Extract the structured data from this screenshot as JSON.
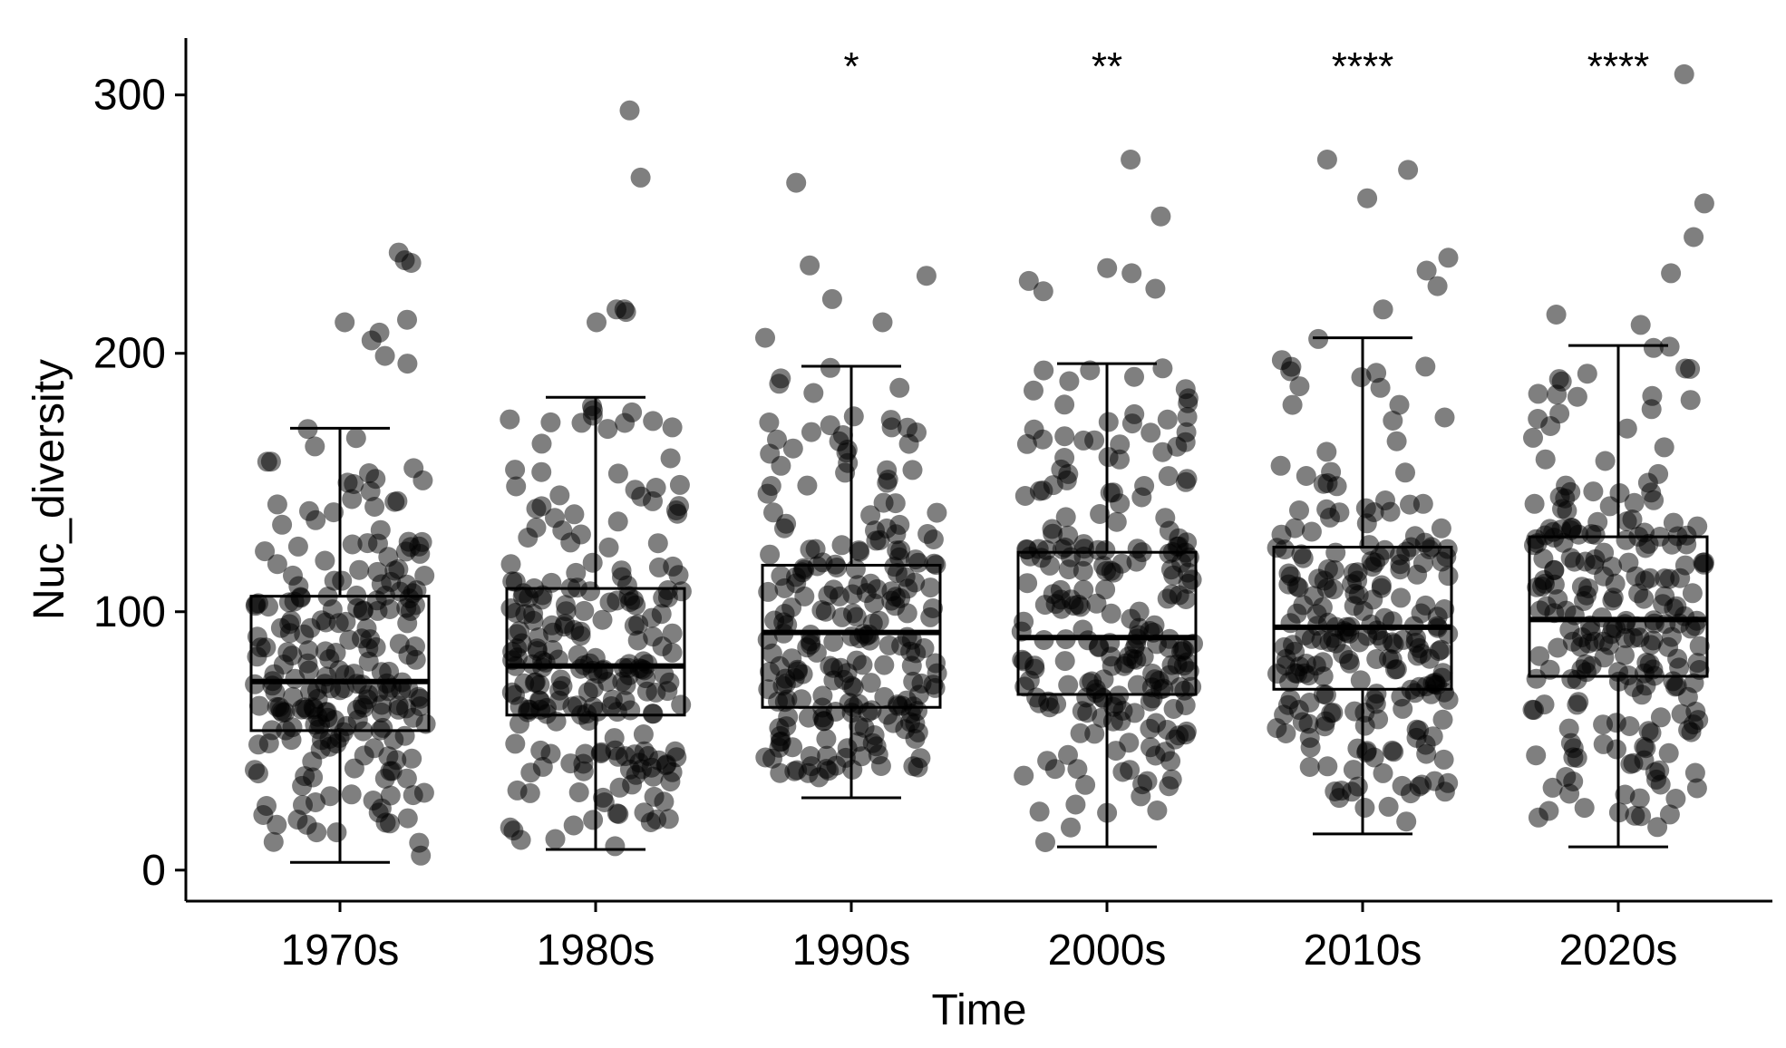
{
  "chart_data": {
    "type": "boxplot",
    "title": "",
    "xlabel": "Time",
    "ylabel": "Nuc_diversity",
    "ylim": [
      -12,
      322
    ],
    "yticks": [
      0,
      100,
      200,
      300
    ],
    "grid": false,
    "legend": "none",
    "point_color": "#000000",
    "point_opacity": 0.5,
    "box_color": "#000000",
    "categories": [
      "1970s",
      "1980s",
      "1990s",
      "2000s",
      "2010s",
      "2020s"
    ],
    "boxes": [
      {
        "category": "1970s",
        "whisker_low": 3,
        "q1": 54,
        "median": 73,
        "q3": 106,
        "whisker_high": 171,
        "significance": ""
      },
      {
        "category": "1980s",
        "whisker_low": 8,
        "q1": 60,
        "median": 79,
        "q3": 109,
        "whisker_high": 183,
        "significance": ""
      },
      {
        "category": "1990s",
        "whisker_low": 28,
        "q1": 63,
        "median": 92,
        "q3": 118,
        "whisker_high": 195,
        "significance": "*"
      },
      {
        "category": "2000s",
        "whisker_low": 9,
        "q1": 68,
        "median": 90,
        "q3": 123,
        "whisker_high": 196,
        "significance": "**"
      },
      {
        "category": "2010s",
        "whisker_low": 14,
        "q1": 70,
        "median": 94,
        "q3": 125,
        "whisker_high": 206,
        "significance": "****"
      },
      {
        "category": "2020s",
        "whisker_low": 9,
        "q1": 75,
        "median": 97,
        "q3": 129,
        "whisker_high": 203,
        "significance": "****"
      }
    ],
    "outliers": [
      [
        235,
        239,
        236,
        208,
        212,
        213,
        205,
        199,
        196
      ],
      [
        294,
        268,
        217,
        216,
        217,
        212
      ],
      [
        266,
        234,
        230,
        221,
        212,
        206
      ],
      [
        275,
        253,
        233,
        231,
        228,
        225,
        224
      ],
      [
        275,
        271,
        260,
        237,
        232,
        226,
        217
      ],
      [
        308,
        258,
        245,
        231,
        215,
        211
      ]
    ]
  }
}
